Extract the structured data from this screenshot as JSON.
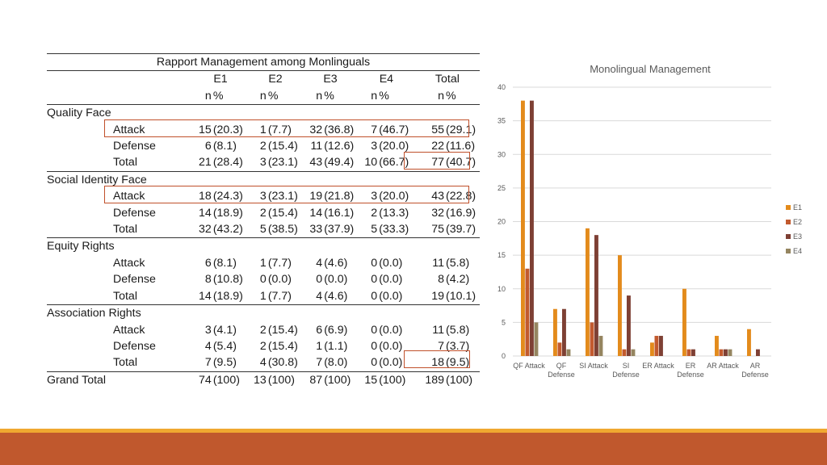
{
  "table": {
    "title": "Rapport Management among Monlinguals",
    "groups": [
      "E1",
      "E2",
      "E3",
      "E4",
      "Total"
    ],
    "subheads": {
      "n": "n",
      "pct": "%"
    },
    "sections": [
      {
        "name": "Quality Face",
        "rows": [
          {
            "label": "Attack",
            "cells": [
              [
                "15",
                "(20.3)"
              ],
              [
                "1",
                "(7.7)"
              ],
              [
                "32",
                "(36.8)"
              ],
              [
                "7",
                "(46.7)"
              ],
              [
                "55",
                "(29.1)"
              ]
            ]
          },
          {
            "label": "Defense",
            "cells": [
              [
                "6",
                "(8.1)"
              ],
              [
                "2",
                "(15.4)"
              ],
              [
                "11",
                "(12.6)"
              ],
              [
                "3",
                "(20.0)"
              ],
              [
                "22",
                "(11.6)"
              ]
            ]
          },
          {
            "label": "Total",
            "cells": [
              [
                "21",
                "(28.4)"
              ],
              [
                "3",
                "(23.1)"
              ],
              [
                "43",
                "(49.4)"
              ],
              [
                "10",
                "(66.7)"
              ],
              [
                "77",
                "(40.7)"
              ]
            ]
          }
        ]
      },
      {
        "name": "Social Identity Face",
        "rows": [
          {
            "label": "Attack",
            "cells": [
              [
                "18",
                "(24.3)"
              ],
              [
                "3",
                "(23.1)"
              ],
              [
                "19",
                "(21.8)"
              ],
              [
                "3",
                "(20.0)"
              ],
              [
                "43",
                "(22.8)"
              ]
            ]
          },
          {
            "label": "Defense",
            "cells": [
              [
                "14",
                "(18.9)"
              ],
              [
                "2",
                "(15.4)"
              ],
              [
                "14",
                "(16.1)"
              ],
              [
                "2",
                "(13.3)"
              ],
              [
                "32",
                "(16.9)"
              ]
            ]
          },
          {
            "label": "Total",
            "cells": [
              [
                "32",
                "(43.2)"
              ],
              [
                "5",
                "(38.5)"
              ],
              [
                "33",
                "(37.9)"
              ],
              [
                "5",
                "(33.3)"
              ],
              [
                "75",
                "(39.7)"
              ]
            ]
          }
        ]
      },
      {
        "name": "Equity Rights",
        "rows": [
          {
            "label": "Attack",
            "cells": [
              [
                "6",
                "(8.1)"
              ],
              [
                "1",
                "(7.7)"
              ],
              [
                "4",
                "(4.6)"
              ],
              [
                "0",
                "(0.0)"
              ],
              [
                "11",
                "(5.8)"
              ]
            ]
          },
          {
            "label": "Defense",
            "cells": [
              [
                "8",
                "(10.8)"
              ],
              [
                "0",
                "(0.0)"
              ],
              [
                "0",
                "(0.0)"
              ],
              [
                "0",
                "(0.0)"
              ],
              [
                "8",
                "(4.2)"
              ]
            ]
          },
          {
            "label": "Total",
            "cells": [
              [
                "14",
                "(18.9)"
              ],
              [
                "1",
                "(7.7)"
              ],
              [
                "4",
                "(4.6)"
              ],
              [
                "0",
                "(0.0)"
              ],
              [
                "19",
                "(10.1)"
              ]
            ]
          }
        ]
      },
      {
        "name": "Association Rights",
        "rows": [
          {
            "label": "Attack",
            "cells": [
              [
                "3",
                "(4.1)"
              ],
              [
                "2",
                "(15.4)"
              ],
              [
                "6",
                "(6.9)"
              ],
              [
                "0",
                "(0.0)"
              ],
              [
                "11",
                "(5.8)"
              ]
            ]
          },
          {
            "label": "Defense",
            "cells": [
              [
                "4",
                "(5.4)"
              ],
              [
                "2",
                "(15.4)"
              ],
              [
                "1",
                "(1.1)"
              ],
              [
                "0",
                "(0.0)"
              ],
              [
                "7",
                "(3.7)"
              ]
            ]
          },
          {
            "label": "Total",
            "cells": [
              [
                "7",
                "(9.5)"
              ],
              [
                "4",
                "(30.8)"
              ],
              [
                "7",
                "(8.0)"
              ],
              [
                "0",
                "(0.0)"
              ],
              [
                "18",
                "(9.5)"
              ]
            ]
          }
        ]
      }
    ],
    "grand_total": {
      "label": "Grand Total",
      "cells": [
        [
          "74",
          "(100)"
        ],
        [
          "13",
          "(100)"
        ],
        [
          "87",
          "(100)"
        ],
        [
          "15",
          "(100)"
        ],
        [
          "189",
          "(100)"
        ]
      ]
    }
  },
  "chart_data": {
    "type": "bar",
    "title": "Monolingual Management",
    "categories": [
      "QF Attack",
      "QF Defense",
      "SI Attack",
      "SI Defense",
      "ER Attack",
      "ER Defense",
      "AR Attack",
      "AR Defense"
    ],
    "category_lines": [
      [
        "QF Attack"
      ],
      [
        "QF",
        "Defense"
      ],
      [
        "SI Attack"
      ],
      [
        "SI",
        "Defense"
      ],
      [
        "ER Attack"
      ],
      [
        "ER",
        "Defense"
      ],
      [
        "AR Attack"
      ],
      [
        "AR",
        "Defense"
      ]
    ],
    "series": [
      {
        "name": "E1",
        "values": [
          38,
          7,
          19,
          15,
          2,
          10,
          3,
          4
        ]
      },
      {
        "name": "E2",
        "values": [
          13,
          2,
          5,
          1,
          3,
          1,
          1,
          0
        ]
      },
      {
        "name": "E3",
        "values": [
          38,
          7,
          18,
          9,
          3,
          1,
          1,
          1
        ]
      },
      {
        "name": "E4",
        "values": [
          5,
          1,
          3,
          1,
          0,
          0,
          1,
          0
        ]
      }
    ],
    "ylim": [
      0,
      40
    ],
    "yticks": [
      0,
      5,
      10,
      15,
      20,
      25,
      30,
      35,
      40
    ],
    "legend": "right",
    "xlabel": "",
    "ylabel": "",
    "colors": [
      "#e38b1c",
      "#c25a2e",
      "#7e4034",
      "#958560"
    ]
  }
}
